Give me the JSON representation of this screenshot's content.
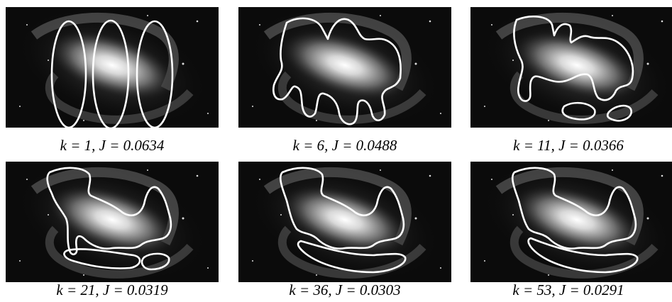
{
  "panels": [
    {
      "caption": "k = 1, J = 0.0634"
    },
    {
      "caption": "k = 6, J = 0.0488"
    },
    {
      "caption": "k = 11, J = 0.0366"
    },
    {
      "caption": "k = 21, J = 0.0319"
    },
    {
      "caption": "k = 36, J = 0.0303"
    },
    {
      "caption": "k = 53, J = 0.0291"
    }
  ]
}
